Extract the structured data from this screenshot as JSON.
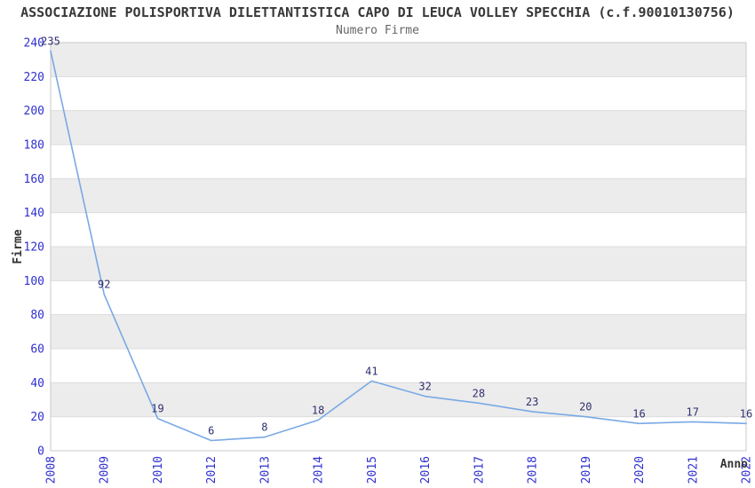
{
  "chart_data": {
    "type": "line",
    "title": "ASSOCIAZIONE POLISPORTIVA DILETTANTISTICA CAPO DI LEUCA VOLLEY SPECCHIA (c.f.90010130756)",
    "subtitle": "Numero Firme",
    "xlabel": "Anno",
    "ylabel": "Firme",
    "categories": [
      "2008",
      "2009",
      "2010",
      "2012",
      "2013",
      "2014",
      "2015",
      "2016",
      "2017",
      "2018",
      "2019",
      "2020",
      "2021",
      "2022"
    ],
    "values": [
      235,
      92,
      19,
      6,
      8,
      18,
      41,
      32,
      28,
      23,
      20,
      16,
      17,
      16
    ],
    "point_labels": [
      "235",
      "92",
      "19",
      "6",
      "8",
      "18",
      "41",
      "32",
      "28",
      "23",
      "20",
      "16",
      "17",
      "16"
    ],
    "ylim": [
      0,
      240
    ],
    "ytick_step": 20,
    "grid": true,
    "alternating_bands": true,
    "legend": "none",
    "colors": {
      "line": "#79a9e5",
      "tick_label": "#3030cf",
      "point_label": "#303070",
      "band": "#ececec",
      "gridline": "#dcdcdc",
      "plot_border": "#c8c8c8",
      "title": "#383838",
      "subtitle": "#666666",
      "axis_label": "#333333",
      "background": "#ffffff"
    }
  }
}
